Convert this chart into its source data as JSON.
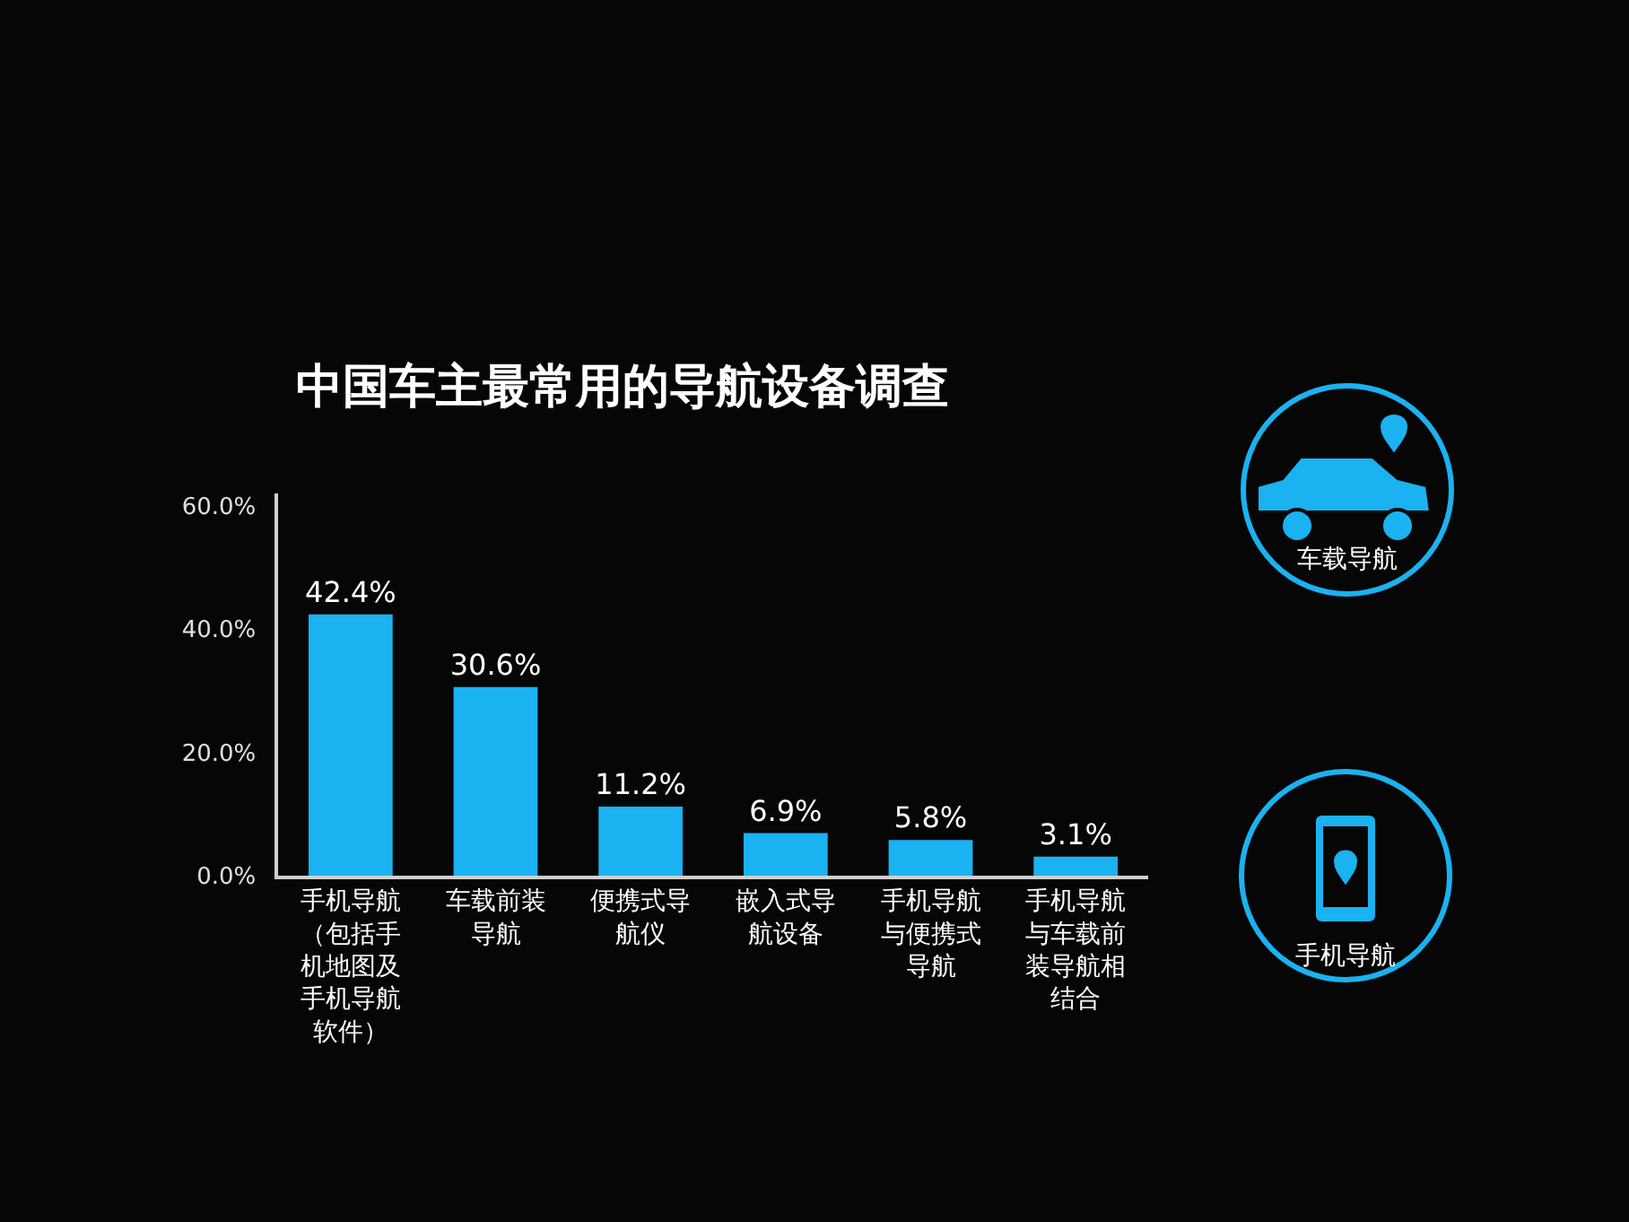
{
  "chart_data": {
    "type": "bar",
    "title": "中国车主最常用的导航设备调查",
    "categories": [
      "手机导航（包括手机地图及手机导航软件）",
      "车载前装导航",
      "便携式导航仪",
      "嵌入式导航设备",
      "手机导航与便携式导航",
      "手机导航与车载前装导航相结合"
    ],
    "values": [
      42.4,
      30.6,
      11.2,
      6.9,
      5.8,
      3.1
    ],
    "value_labels": [
      "42.4%",
      "30.6%",
      "11.2%",
      "6.9%",
      "5.8%",
      "3.1%"
    ],
    "color": "#1ab2f0",
    "ylim": [
      0,
      62
    ],
    "yticks": [
      {
        "value": 0,
        "label": "0.0%"
      },
      {
        "value": 20,
        "label": "20.0%"
      },
      {
        "value": 40,
        "label": "40.0%"
      },
      {
        "value": 60,
        "label": "60.0%"
      }
    ],
    "grid": false,
    "annotations": [
      "车载导航",
      "手机导航"
    ]
  }
}
